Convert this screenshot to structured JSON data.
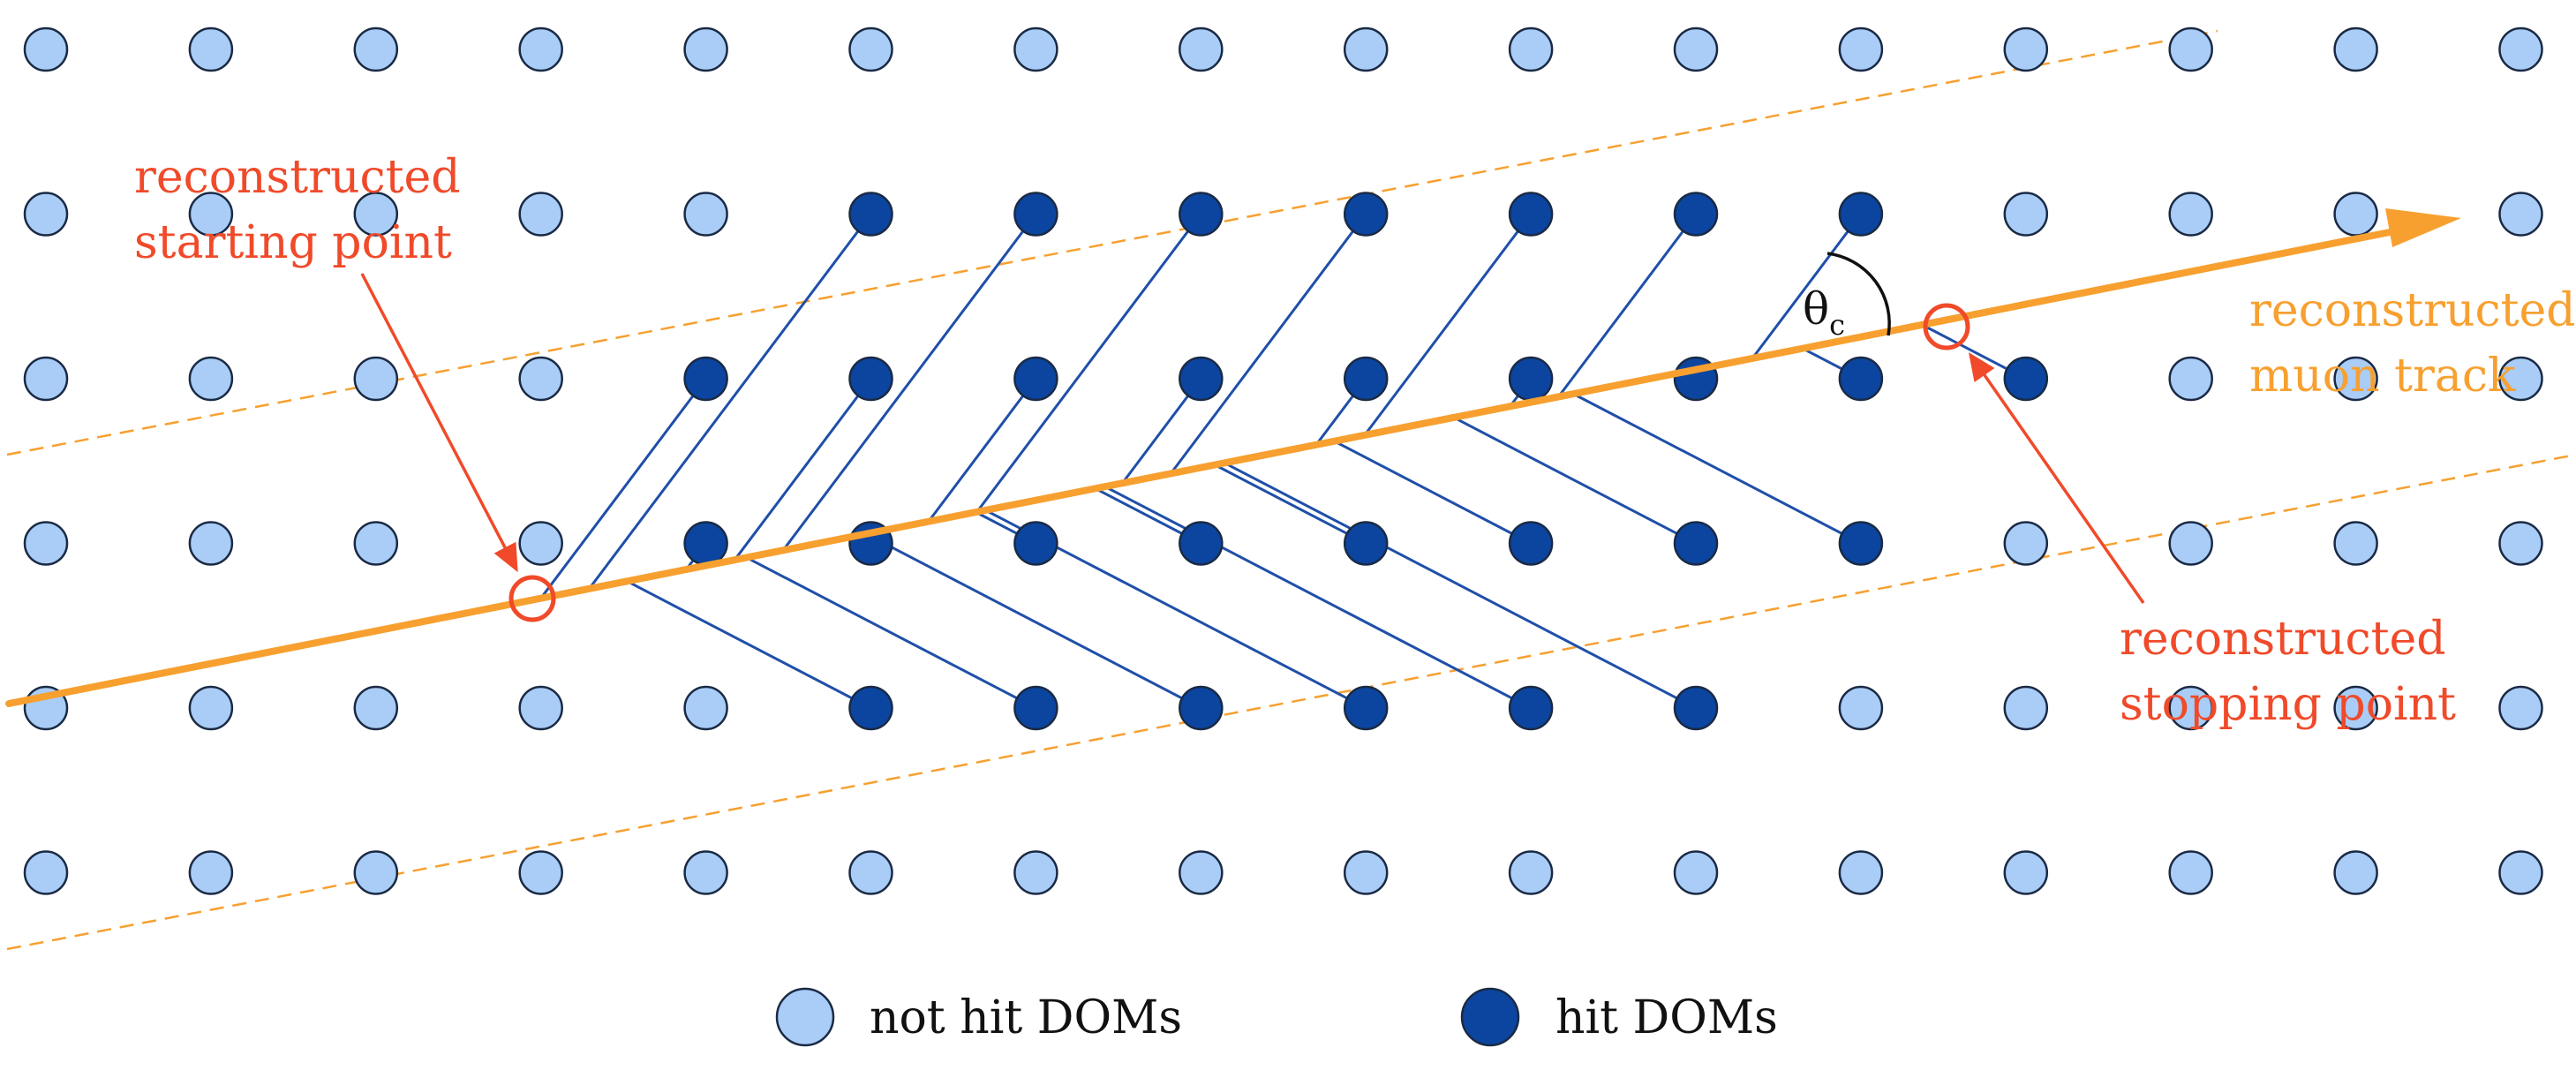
{
  "labels": {
    "start": [
      "reconstructed",
      "starting point"
    ],
    "stop": [
      "reconstructed",
      "stopping point"
    ],
    "track": [
      "reconstructed",
      "muon track"
    ],
    "theta": "θ",
    "theta_sub": "c"
  },
  "legend": {
    "not_hit": "not hit DOMs",
    "hit": "hit DOMs"
  },
  "colors": {
    "not_hit_fill": "#a9cdf7",
    "hit_fill": "#0b45a0",
    "dom_stroke": "#1a2a44",
    "track": "#f7a030",
    "cherenkov": "#1f4fa8",
    "annotation": "#f04a2a"
  },
  "grid": {
    "columns": 16,
    "rows": 6,
    "hit": [
      [
        1,
        5
      ],
      [
        1,
        6
      ],
      [
        1,
        7
      ],
      [
        1,
        8
      ],
      [
        1,
        9
      ],
      [
        1,
        10
      ],
      [
        1,
        11
      ],
      [
        2,
        4
      ],
      [
        2,
        5
      ],
      [
        2,
        6
      ],
      [
        2,
        7
      ],
      [
        2,
        8
      ],
      [
        2,
        9
      ],
      [
        2,
        10
      ],
      [
        2,
        11
      ],
      [
        2,
        12
      ],
      [
        3,
        4
      ],
      [
        3,
        5
      ],
      [
        3,
        6
      ],
      [
        3,
        7
      ],
      [
        3,
        8
      ],
      [
        3,
        9
      ],
      [
        3,
        10
      ],
      [
        3,
        11
      ],
      [
        4,
        5
      ],
      [
        4,
        6
      ],
      [
        4,
        7
      ],
      [
        4,
        8
      ],
      [
        4,
        9
      ],
      [
        4,
        10
      ]
    ]
  }
}
